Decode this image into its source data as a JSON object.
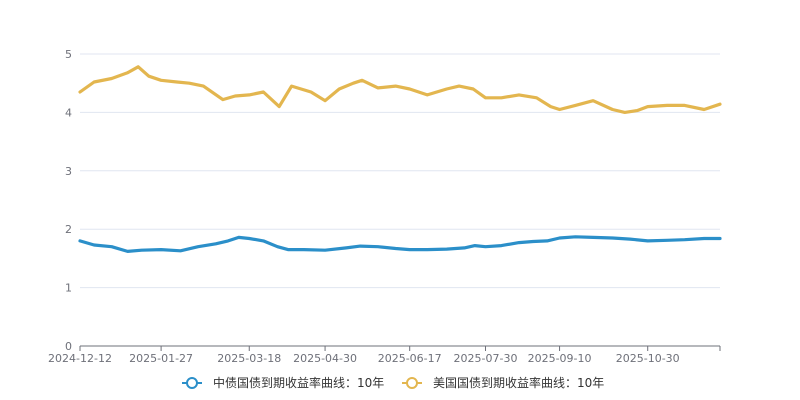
{
  "chart_data": {
    "type": "line",
    "title": "",
    "xlabel": "",
    "ylabel": "",
    "ylim": [
      0,
      5
    ],
    "yticks": [
      0,
      1,
      2,
      3,
      4,
      5
    ],
    "grid": true,
    "legend_position": "bottom-center",
    "x_start": "2024-12-12",
    "x_end": "2025-12-10",
    "x_tick_labels": [
      "2024-12-12",
      "2025-01-27",
      "2025-03-18",
      "2025-04-30",
      "2025-06-17",
      "2025-07-30",
      "2025-09-10",
      "2025-10-30"
    ],
    "series": [
      {
        "name": "中债国债到期收益率曲线：10年",
        "color": "#2b8fc9",
        "x": [
          "2024-12-12",
          "2024-12-20",
          "2024-12-30",
          "2025-01-08",
          "2025-01-16",
          "2025-01-27",
          "2025-02-07",
          "2025-02-17",
          "2025-02-27",
          "2025-03-06",
          "2025-03-12",
          "2025-03-18",
          "2025-03-26",
          "2025-04-03",
          "2025-04-09",
          "2025-04-18",
          "2025-04-30",
          "2025-05-12",
          "2025-05-20",
          "2025-05-30",
          "2025-06-09",
          "2025-06-17",
          "2025-06-27",
          "2025-07-08",
          "2025-07-18",
          "2025-07-24",
          "2025-07-30",
          "2025-08-08",
          "2025-08-18",
          "2025-08-26",
          "2025-09-03",
          "2025-09-10",
          "2025-09-19",
          "2025-09-29",
          "2025-10-10",
          "2025-10-20",
          "2025-10-30",
          "2025-11-10",
          "2025-11-20",
          "2025-12-01",
          "2025-12-10"
        ],
        "values": [
          1.8,
          1.73,
          1.7,
          1.62,
          1.64,
          1.65,
          1.63,
          1.7,
          1.75,
          1.8,
          1.86,
          1.84,
          1.8,
          1.7,
          1.65,
          1.65,
          1.64,
          1.68,
          1.71,
          1.7,
          1.67,
          1.65,
          1.65,
          1.66,
          1.68,
          1.72,
          1.7,
          1.72,
          1.77,
          1.79,
          1.8,
          1.85,
          1.87,
          1.86,
          1.85,
          1.83,
          1.8,
          1.81,
          1.82,
          1.84,
          1.84
        ]
      },
      {
        "name": "美国国债到期收益率曲线：10年",
        "color": "#e3b64f",
        "x": [
          "2024-12-12",
          "2024-12-20",
          "2024-12-30",
          "2025-01-08",
          "2025-01-14",
          "2025-01-20",
          "2025-01-27",
          "2025-02-05",
          "2025-02-12",
          "2025-02-20",
          "2025-03-03",
          "2025-03-10",
          "2025-03-18",
          "2025-03-26",
          "2025-04-04",
          "2025-04-11",
          "2025-04-22",
          "2025-04-30",
          "2025-05-08",
          "2025-05-16",
          "2025-05-21",
          "2025-05-30",
          "2025-06-09",
          "2025-06-17",
          "2025-06-27",
          "2025-07-08",
          "2025-07-15",
          "2025-07-23",
          "2025-07-30",
          "2025-08-08",
          "2025-08-18",
          "2025-08-28",
          "2025-09-05",
          "2025-09-10",
          "2025-09-19",
          "2025-09-29",
          "2025-10-10",
          "2025-10-17",
          "2025-10-24",
          "2025-10-30",
          "2025-11-10",
          "2025-11-20",
          "2025-12-01",
          "2025-12-10"
        ],
        "values": [
          4.35,
          4.52,
          4.58,
          4.68,
          4.78,
          4.62,
          4.55,
          4.52,
          4.5,
          4.45,
          4.22,
          4.28,
          4.3,
          4.35,
          4.1,
          4.45,
          4.35,
          4.2,
          4.4,
          4.5,
          4.55,
          4.42,
          4.45,
          4.4,
          4.3,
          4.4,
          4.45,
          4.4,
          4.25,
          4.25,
          4.3,
          4.25,
          4.1,
          4.05,
          4.12,
          4.2,
          4.05,
          4.0,
          4.03,
          4.1,
          4.12,
          4.12,
          4.05,
          4.14
        ]
      }
    ]
  }
}
